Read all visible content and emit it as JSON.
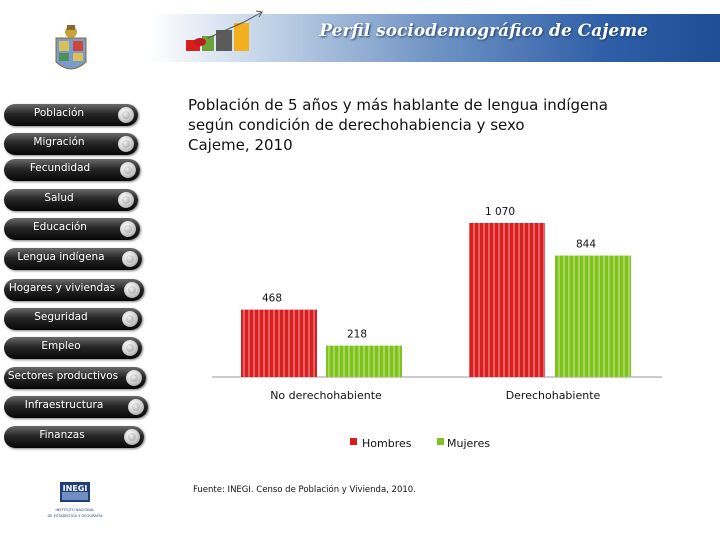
{
  "header": {
    "title": "Perfil sociodemográfico de Cajeme"
  },
  "sidebar": {
    "items": [
      {
        "label": "Población"
      },
      {
        "label": "Migración"
      },
      {
        "label": "Fecundidad"
      },
      {
        "label": "Salud"
      },
      {
        "label": "Educación"
      },
      {
        "label": "Lengua indígena"
      },
      {
        "label": "Hogares y viviendas"
      },
      {
        "label": "Seguridad"
      },
      {
        "label": "Empleo"
      },
      {
        "label": "Sectores productivos"
      },
      {
        "label": "Infraestructura"
      },
      {
        "label": "Finanzas"
      }
    ]
  },
  "footer": {
    "source": "Fuente: INEGI. Censo de Población y Vivienda, 2010.",
    "inegi_logo_text": "INEGI",
    "inegi_subtitle_1": "INSTITUTO NACIONAL",
    "inegi_subtitle_2": "DE ESTADÍSTICA Y GEOGRAFÍA"
  },
  "colors": {
    "hombres": "#d81e1e",
    "mujeres": "#7fc31c",
    "nav": "#151515",
    "header": "#2f5fa8"
  },
  "chart_data": {
    "type": "bar",
    "title_lines": [
      "Población de 5 años y más hablante de lengua indígena",
      "según condición de derechohabiencia y sexo",
      "Cajeme, 2010"
    ],
    "categories": [
      "No derechohabiente",
      "Derechohabiente"
    ],
    "series": [
      {
        "name": "Hombres",
        "values": [
          468,
          1070
        ],
        "labels": [
          "468",
          "1 070"
        ]
      },
      {
        "name": "Mujeres",
        "values": [
          218,
          844
        ],
        "labels": [
          "218",
          "844"
        ]
      }
    ],
    "ylim": [
      0,
      1070
    ],
    "xlabel": "",
    "ylabel": "",
    "legend": "bottom"
  }
}
